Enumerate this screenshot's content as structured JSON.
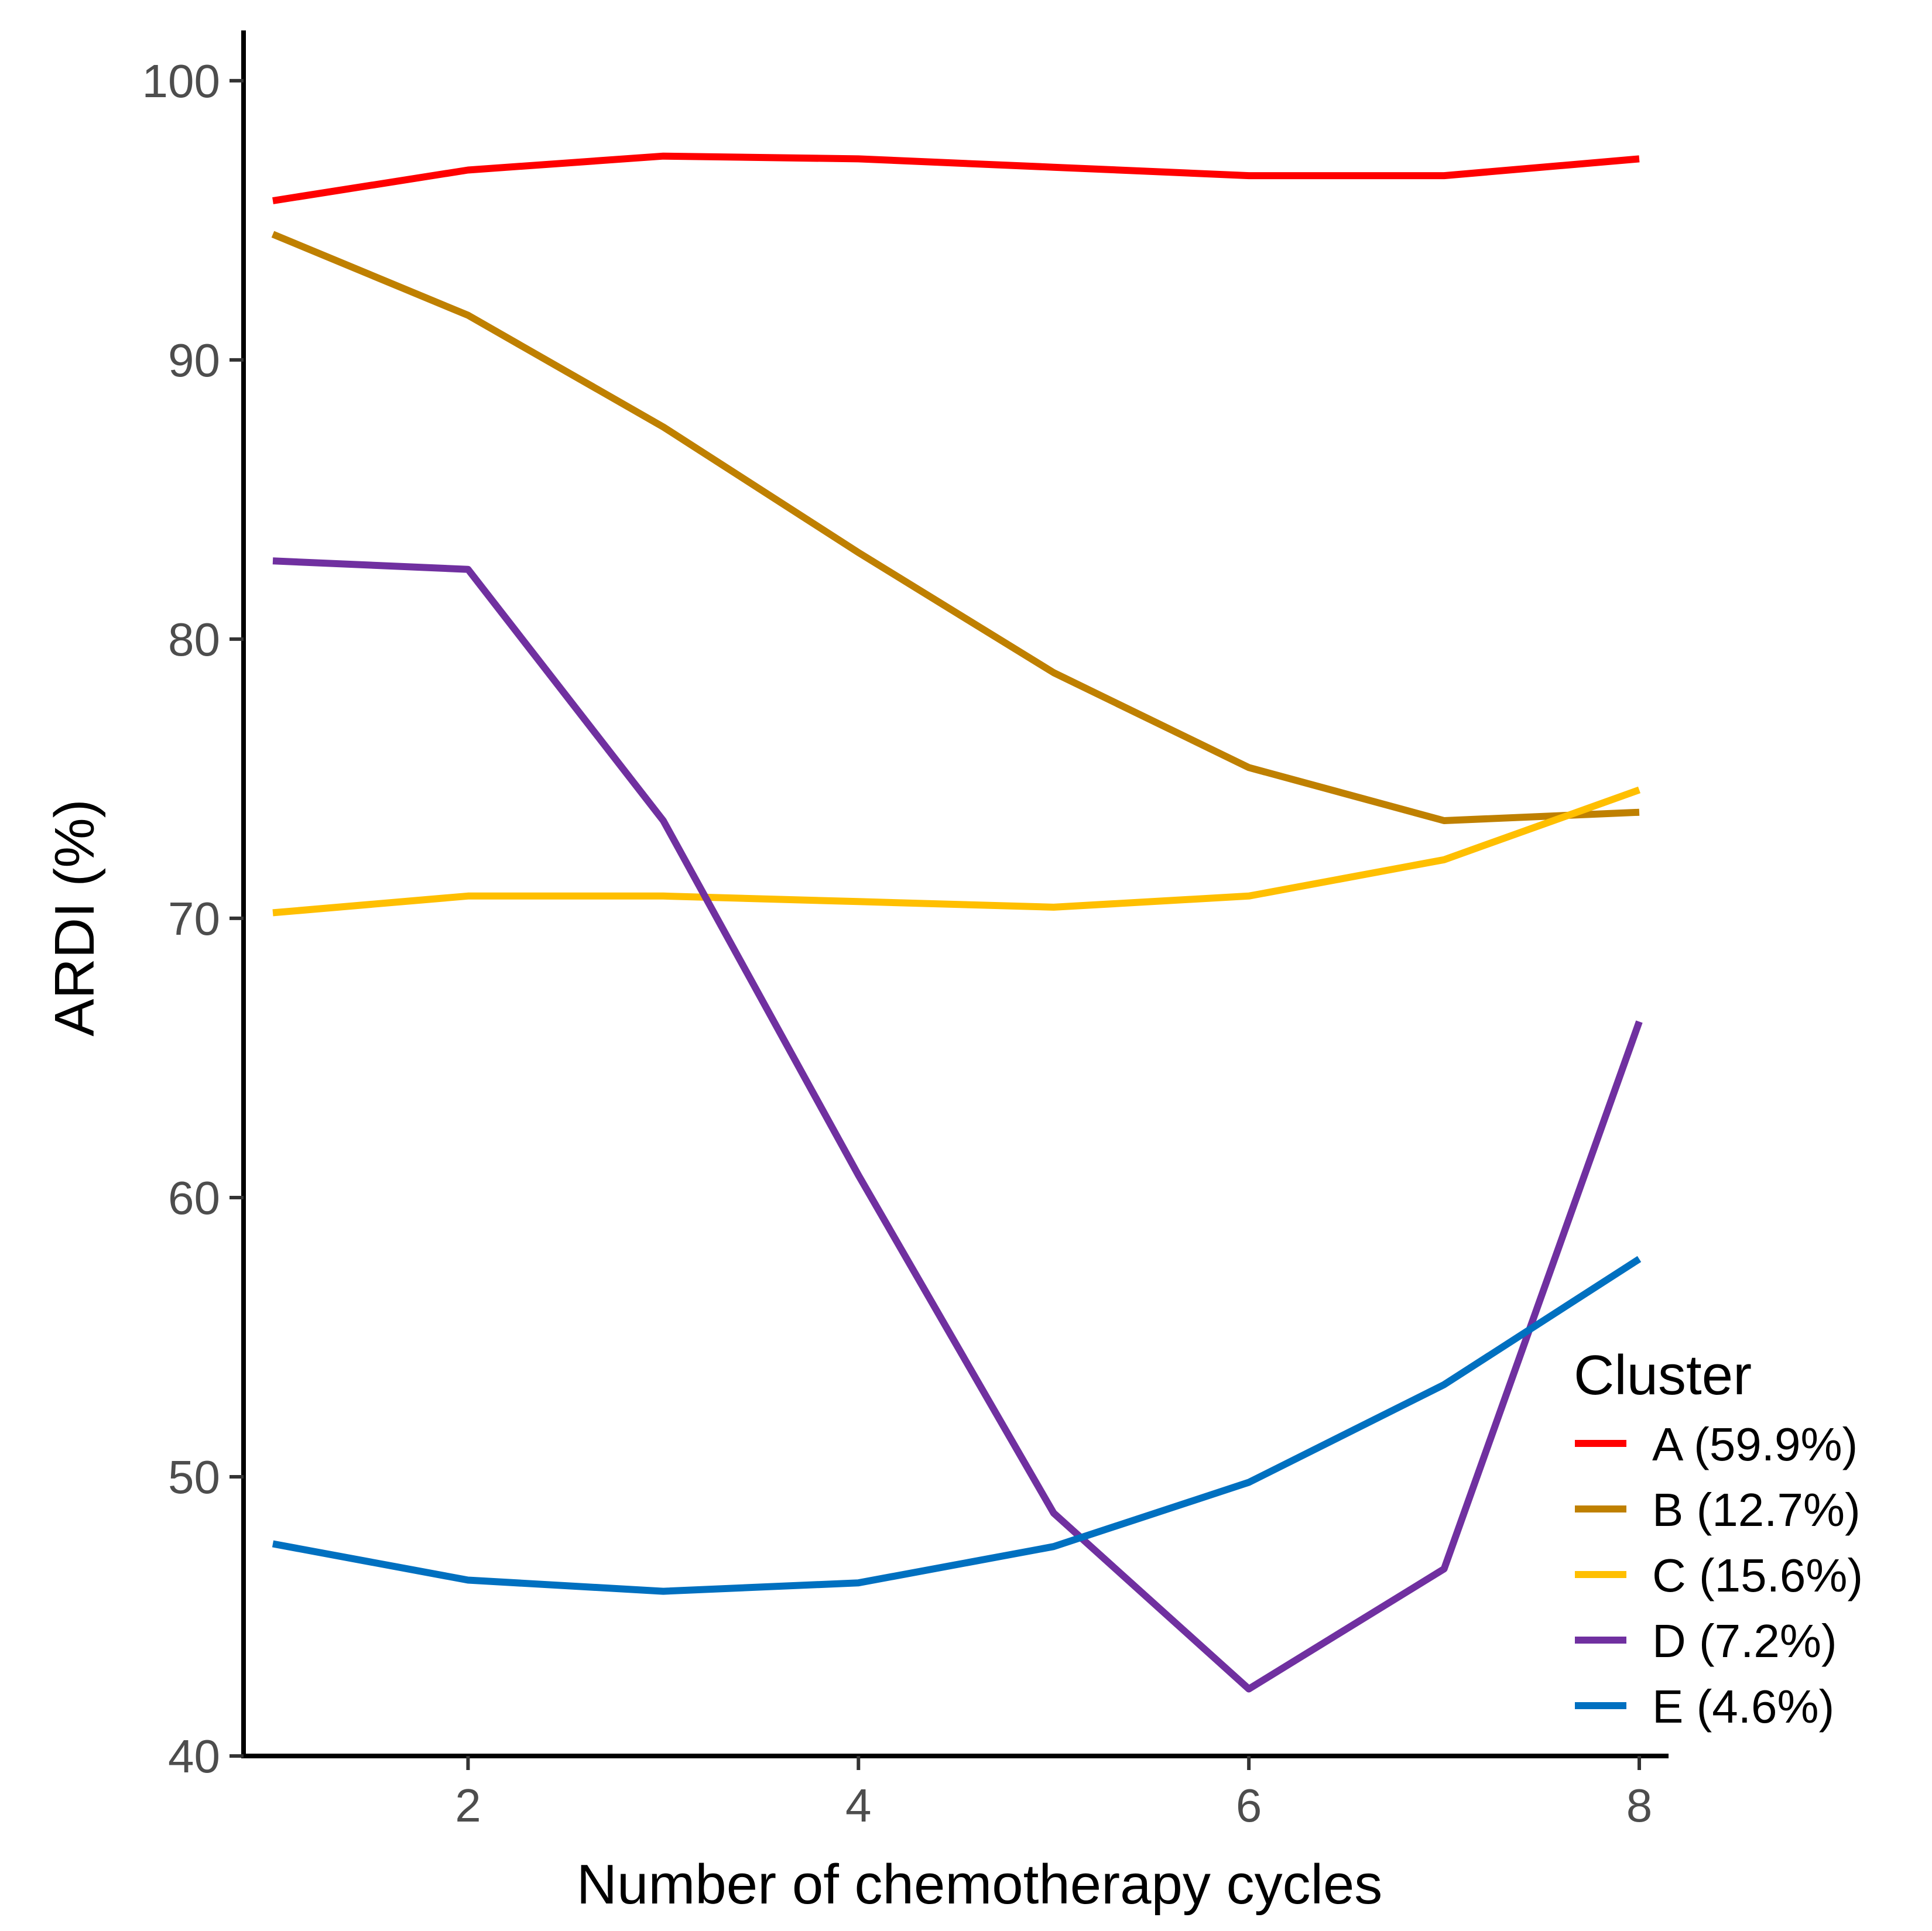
{
  "chart_data": {
    "type": "line",
    "title": "",
    "xlabel": "Number of chemotherapy cycles",
    "ylabel": "ARDI (%)",
    "x": [
      1,
      2,
      3,
      4,
      5,
      6,
      7,
      8
    ],
    "xlim": [
      0.85,
      8.15
    ],
    "ylim": [
      40,
      101.8
    ],
    "xticks": [
      2,
      4,
      6,
      8
    ],
    "yticks": [
      40,
      50,
      60,
      70,
      80,
      90,
      100
    ],
    "grid": false,
    "legend": {
      "title": "Cluster",
      "position": "bottom-right"
    },
    "series": [
      {
        "name": "A (59.9%)",
        "color": "#ff0000",
        "values": [
          95.7,
          96.8,
          97.3,
          97.2,
          96.9,
          96.6,
          96.6,
          97.2
        ]
      },
      {
        "name": "B (12.7%)",
        "color": "#bf8000",
        "values": [
          94.5,
          91.6,
          87.6,
          83.1,
          78.8,
          75.4,
          73.5,
          73.8
        ]
      },
      {
        "name": "C (15.6%)",
        "color": "#ffbf00",
        "values": [
          70.2,
          70.8,
          70.8,
          70.6,
          70.4,
          70.8,
          72.1,
          74.6
        ]
      },
      {
        "name": "D (7.2%)",
        "color": "#7030a0",
        "values": [
          82.8,
          82.5,
          73.5,
          60.8,
          48.7,
          42.4,
          46.7,
          66.3
        ]
      },
      {
        "name": "E (4.6%)",
        "color": "#0070c0",
        "values": [
          47.6,
          46.3,
          45.9,
          46.2,
          47.5,
          49.8,
          53.3,
          57.8
        ]
      }
    ]
  }
}
